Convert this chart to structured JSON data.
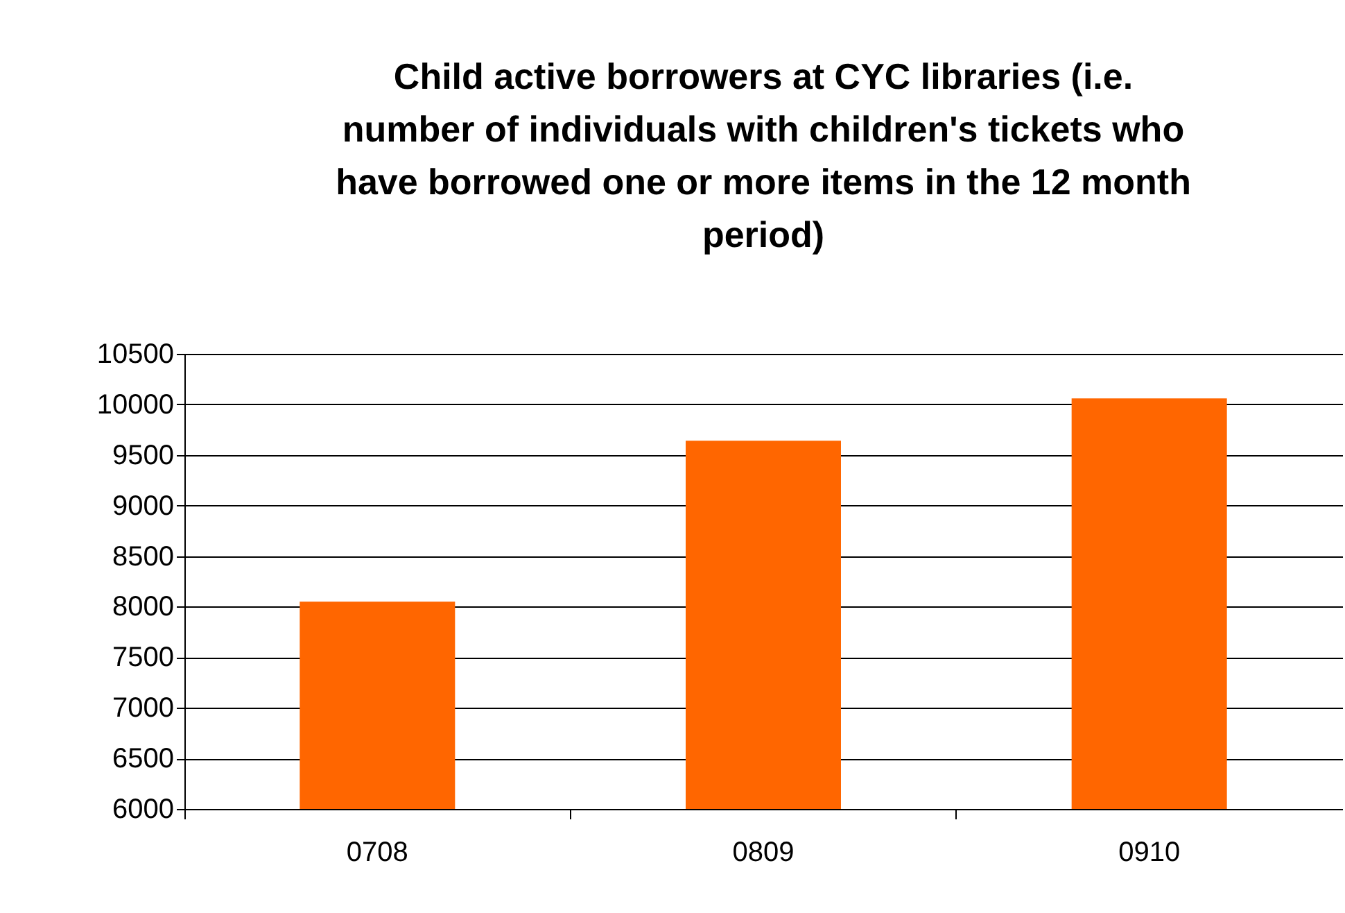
{
  "chart_data": {
    "type": "bar",
    "title": "Child active borrowers at CYC libraries (i.e. number of individuals with children's tickets who have borrowed one or more items in the 12 month period)",
    "categories": [
      "0708",
      "0809",
      "0910"
    ],
    "values": [
      8050,
      9640,
      10060
    ],
    "color": "#ff6600",
    "ylim": [
      6000,
      10500
    ],
    "yticks": [
      6000,
      6500,
      7000,
      7500,
      8000,
      8500,
      9000,
      9500,
      10000,
      10500
    ],
    "grid": "y"
  }
}
